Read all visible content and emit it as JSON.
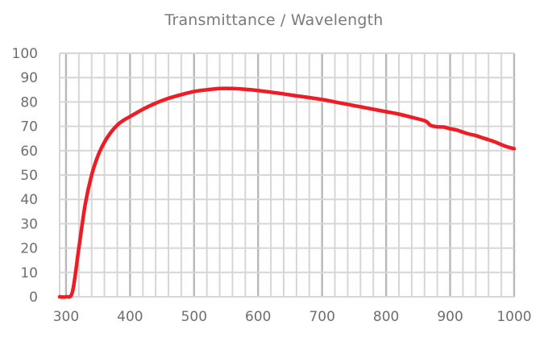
{
  "chart_data": {
    "type": "line",
    "title": "Transmittance / Wavelength",
    "xlabel": "",
    "ylabel": "",
    "xlim": [
      290,
      1000
    ],
    "ylim": [
      0,
      100
    ],
    "x_ticks": [
      300,
      400,
      500,
      600,
      700,
      800,
      900,
      1000
    ],
    "y_ticks": [
      0,
      10,
      20,
      30,
      40,
      50,
      60,
      70,
      80,
      90,
      100
    ],
    "grid": true,
    "line_color": "#ee1c25",
    "grid_major_color": "#b8b8b8",
    "grid_minor_color": "#d6d6d6",
    "series": [
      {
        "x": [
          290,
          300,
          310,
          320,
          330,
          340,
          350,
          360,
          370,
          380,
          390,
          400,
          420,
          440,
          460,
          480,
          500,
          520,
          540,
          560,
          580,
          600,
          620,
          640,
          660,
          680,
          700,
          720,
          740,
          760,
          780,
          800,
          820,
          840,
          860,
          865,
          870,
          880,
          890,
          900,
          910,
          920,
          930,
          940,
          950,
          960,
          970,
          980,
          990,
          1000
        ],
        "y": [
          0,
          0,
          2,
          20,
          38,
          50,
          58,
          63.5,
          67.5,
          70.5,
          72.5,
          74,
          77,
          79.5,
          81.5,
          83,
          84.3,
          85,
          85.5,
          85.5,
          85.2,
          84.7,
          84,
          83.3,
          82.5,
          81.8,
          81,
          80,
          79,
          78,
          77,
          76,
          75,
          73.7,
          72.3,
          71.5,
          70.3,
          69.8,
          69.7,
          69,
          68.5,
          67.6,
          66.8,
          66.2,
          65.3,
          64.5,
          63.6,
          62.5,
          61.5,
          60.8
        ]
      }
    ]
  }
}
